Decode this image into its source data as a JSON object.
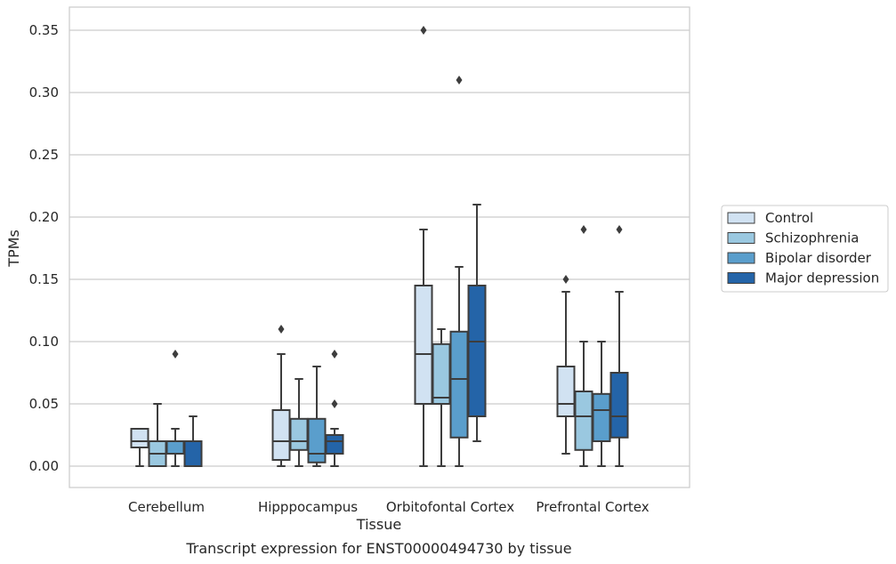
{
  "chart_data": {
    "type": "box",
    "xlabel": "Tissue",
    "ylabel": "TPMs",
    "caption": "Transcript expression for ENST00000494730 by tissue",
    "ylim": [
      -0.017,
      0.367
    ],
    "yticks": [
      0.0,
      0.05,
      0.1,
      0.15,
      0.2,
      0.25,
      0.3,
      0.35
    ],
    "ytick_labels": [
      "0.00",
      "0.05",
      "0.10",
      "0.15",
      "0.20",
      "0.25",
      "0.30",
      "0.35"
    ],
    "grid": "horizontal",
    "legend_position": "right",
    "categories": [
      "Cerebellum",
      "Hipppocampus",
      "Orbitofontal Cortex",
      "Prefrontal Cortex"
    ],
    "series": [
      {
        "name": "Control",
        "color": "#d1e2f2",
        "boxes": [
          {
            "whislo": 0.0,
            "q1": 0.015,
            "med": 0.02,
            "q3": 0.03,
            "whishi": 0.03,
            "fliers": []
          },
          {
            "whislo": 0.0,
            "q1": 0.005,
            "med": 0.02,
            "q3": 0.045,
            "whishi": 0.09,
            "fliers": [
              0.11
            ]
          },
          {
            "whislo": 0.0,
            "q1": 0.05,
            "med": 0.09,
            "q3": 0.145,
            "whishi": 0.19,
            "fliers": [
              0.35
            ]
          },
          {
            "whislo": 0.01,
            "q1": 0.04,
            "med": 0.05,
            "q3": 0.08,
            "whishi": 0.14,
            "fliers": [
              0.15
            ]
          }
        ]
      },
      {
        "name": "Schizophrenia",
        "color": "#9ac8e0",
        "boxes": [
          {
            "whislo": 0.0,
            "q1": 0.0,
            "med": 0.01,
            "q3": 0.02,
            "whishi": 0.05,
            "fliers": []
          },
          {
            "whislo": 0.0,
            "q1": 0.013,
            "med": 0.02,
            "q3": 0.038,
            "whishi": 0.07,
            "fliers": []
          },
          {
            "whislo": 0.0,
            "q1": 0.05,
            "med": 0.055,
            "q3": 0.098,
            "whishi": 0.11,
            "fliers": []
          },
          {
            "whislo": 0.0,
            "q1": 0.013,
            "med": 0.04,
            "q3": 0.06,
            "whishi": 0.1,
            "fliers": [
              0.19
            ]
          }
        ]
      },
      {
        "name": "Bipolar disorder",
        "color": "#5a9ecc",
        "boxes": [
          {
            "whislo": 0.0,
            "q1": 0.01,
            "med": 0.01,
            "q3": 0.02,
            "whishi": 0.03,
            "fliers": [
              0.09
            ]
          },
          {
            "whislo": 0.0,
            "q1": 0.003,
            "med": 0.01,
            "q3": 0.038,
            "whishi": 0.08,
            "fliers": []
          },
          {
            "whislo": 0.0,
            "q1": 0.023,
            "med": 0.07,
            "q3": 0.108,
            "whishi": 0.16,
            "fliers": [
              0.31
            ]
          },
          {
            "whislo": 0.0,
            "q1": 0.02,
            "med": 0.045,
            "q3": 0.058,
            "whishi": 0.1,
            "fliers": []
          }
        ]
      },
      {
        "name": "Major depression",
        "color": "#2464a8",
        "boxes": [
          {
            "whislo": 0.0,
            "q1": 0.0,
            "med": 0.02,
            "q3": 0.02,
            "whishi": 0.04,
            "fliers": []
          },
          {
            "whislo": 0.0,
            "q1": 0.01,
            "med": 0.02,
            "q3": 0.025,
            "whishi": 0.03,
            "fliers": [
              0.05,
              0.09
            ]
          },
          {
            "whislo": 0.02,
            "q1": 0.04,
            "med": 0.1,
            "q3": 0.145,
            "whishi": 0.21,
            "fliers": []
          },
          {
            "whislo": 0.0,
            "q1": 0.023,
            "med": 0.04,
            "q3": 0.075,
            "whishi": 0.14,
            "fliers": [
              0.19
            ]
          }
        ]
      }
    ]
  }
}
